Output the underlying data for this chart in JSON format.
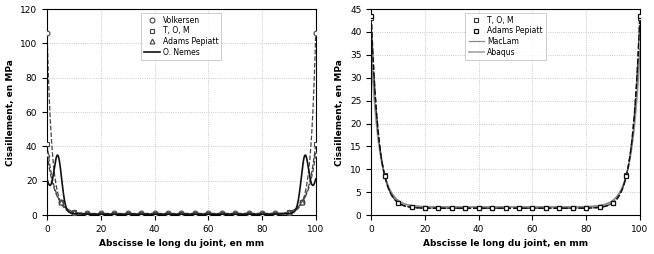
{
  "left": {
    "xlabel": "Abscisse le long du joint, en mm",
    "ylabel": "Cisaillement, en MPa",
    "xlim": [
      0,
      100
    ],
    "ylim": [
      0,
      120
    ],
    "yticks": [
      0,
      20,
      40,
      60,
      80,
      100,
      120
    ],
    "xticks": [
      0,
      20,
      40,
      60,
      80,
      100
    ],
    "legend": [
      "Volkersen",
      "T, O, M",
      "Adams Pepiatt",
      "O. Nemes"
    ]
  },
  "right": {
    "xlabel": "Abscisse le long du joint, en mm",
    "ylabel": "Cisaillement, en MPa",
    "xlim": [
      0,
      100
    ],
    "ylim": [
      0,
      45
    ],
    "yticks": [
      0,
      5,
      10,
      15,
      20,
      25,
      30,
      35,
      40,
      45
    ],
    "xticks": [
      0,
      20,
      40,
      60,
      80,
      100
    ],
    "legend": [
      "T, O, M",
      "Adams Pepiatt",
      "MacLam",
      "Abaqus"
    ]
  },
  "background_color": "#ffffff",
  "grid_color": "#bbbbbb",
  "grid_linestyle": ":"
}
